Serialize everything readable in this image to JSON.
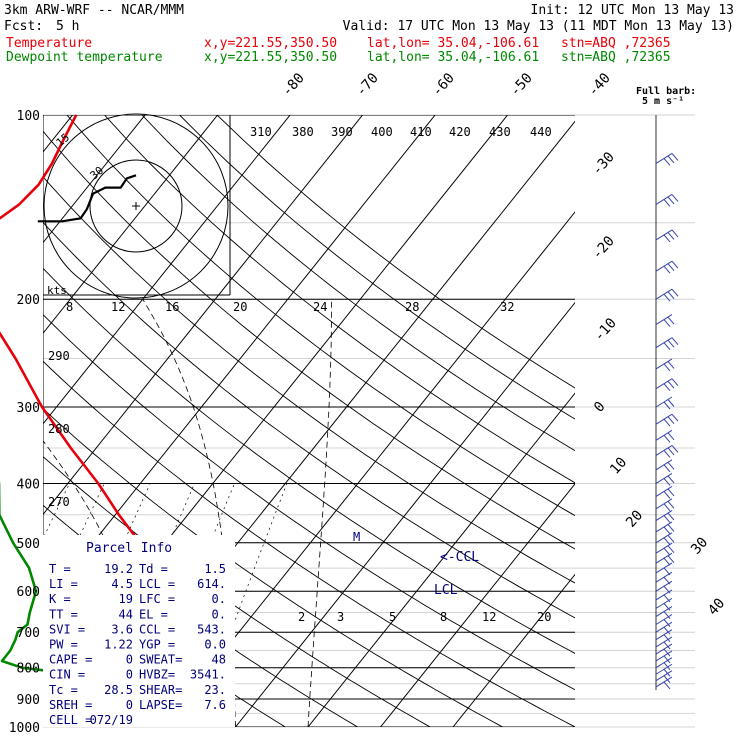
{
  "header": {
    "model": "3km ARW-WRF -- NCAR/MMM",
    "init": "Init: 12 UTC Mon 13 May 13",
    "fcst_label": "Fcst:",
    "fcst_value": "5 h",
    "valid": "Valid: 17 UTC Mon 13 May 13 (11 MDT Mon 13 May 13)",
    "temp_label": "Temperature",
    "dew_label": "Dewpoint temperature",
    "xy": "x,y=221.55,350.50",
    "latlon": "lat,lon= 35.04,-106.61",
    "stn": "stn=ABQ ,72365",
    "colors": {
      "temperature": "#e8000a",
      "dewpoint": "#008800",
      "parcel": "#00007a"
    }
  },
  "wind_legend": {
    "title": "Full barb:",
    "value": "5 m s⁻¹"
  },
  "hodograph": {
    "units": "kts",
    "ring_labels": [
      "15",
      "30"
    ]
  },
  "parcel_info": {
    "title": "Parcel Info",
    "rows": [
      [
        "T  =",
        "19.2",
        "Td =",
        "1.5"
      ],
      [
        "LI =",
        "4.5",
        "LCL =",
        "614."
      ],
      [
        "K  =",
        "19",
        "LFC =",
        "0."
      ],
      [
        "TT =",
        "44",
        "EL =",
        "0."
      ],
      [
        "SVI =",
        "3.6",
        "CCL =",
        "543."
      ],
      [
        "PW =",
        "1.22",
        "YGP =",
        "0.0"
      ],
      [
        "CAPE =",
        "0",
        "SWEAT=",
        "48"
      ],
      [
        "CIN =",
        "0",
        "HVBZ=",
        "3541."
      ],
      [
        "Tc =",
        "28.5",
        "SHEAR=",
        "23."
      ],
      [
        "SREH =",
        "0",
        "LAPSE=",
        "7.6"
      ],
      [
        "CELL =",
        "072/19",
        "",
        ""
      ]
    ]
  },
  "chart_data": {
    "type": "line",
    "chart_kind": "skew-T log-P diagram",
    "y_axis": {
      "quantity": "pressure (hPa)",
      "scale": "log",
      "range": [
        1000,
        100
      ],
      "ticks": [
        100,
        200,
        300,
        400,
        500,
        600,
        700,
        800,
        900,
        1000
      ]
    },
    "isotherm_labels_c": [
      -80,
      -70,
      -60,
      -50,
      -40,
      -30,
      -20,
      -10,
      0,
      10,
      20,
      30,
      40
    ],
    "theta_labels_k": [
      310,
      380,
      390,
      400,
      410,
      420,
      430,
      440
    ],
    "theta_side_labels_k": [
      290,
      280,
      270
    ],
    "mixing_ratio_labels_top": [
      8,
      12,
      16,
      20,
      24,
      28,
      32
    ],
    "mixing_ratio_labels_low": [
      2,
      3,
      5,
      8,
      12,
      20
    ],
    "annotations": [
      "M",
      "<-CCL",
      "LCL"
    ],
    "series": [
      {
        "name": "Temperature",
        "points": [
          [
            850,
            19.2
          ],
          [
            825,
            17.4
          ],
          [
            800,
            17.0
          ],
          [
            780,
            16.4
          ],
          [
            720,
            13.5
          ],
          [
            700,
            11.0
          ],
          [
            650,
            8.3
          ],
          [
            600,
            4.5
          ],
          [
            550,
            1.0
          ],
          [
            500,
            -3.5
          ],
          [
            450,
            -9.5
          ],
          [
            400,
            -15.8
          ],
          [
            350,
            -23.5
          ],
          [
            300,
            -32.0
          ],
          [
            250,
            -41.0
          ],
          [
            225,
            -46.5
          ],
          [
            200,
            -52.0
          ],
          [
            180,
            -58.0
          ],
          [
            170,
            -60.5
          ],
          [
            160,
            -60.5
          ],
          [
            150,
            -59.0
          ],
          [
            140,
            -57.5
          ],
          [
            130,
            -57.0
          ],
          [
            120,
            -57.5
          ],
          [
            110,
            -58.5
          ],
          [
            100,
            -59.5
          ]
        ]
      },
      {
        "name": "Dewpoint temperature",
        "points": [
          [
            850,
            1.5
          ],
          [
            830,
            1.0
          ],
          [
            815,
            0.0
          ],
          [
            800,
            -6.0
          ],
          [
            780,
            -9.5
          ],
          [
            750,
            -9.5
          ],
          [
            720,
            -10.0
          ],
          [
            700,
            -10.5
          ],
          [
            680,
            -10.0
          ],
          [
            650,
            -11.0
          ],
          [
            600,
            -12.5
          ],
          [
            550,
            -16.0
          ],
          [
            500,
            -21.0
          ],
          [
            450,
            -26.0
          ],
          [
            400,
            -29.5
          ],
          [
            350,
            -34.0
          ],
          [
            300,
            -44.5
          ],
          [
            280,
            -51.0
          ],
          [
            260,
            -57.5
          ],
          [
            250,
            -58.5
          ],
          [
            230,
            -61.0
          ],
          [
            200,
            -64.5
          ],
          [
            180,
            -68.0
          ],
          [
            160,
            -72.5
          ],
          [
            150,
            -75.5
          ],
          [
            140,
            -78.0
          ],
          [
            130,
            -80.5
          ],
          [
            120,
            -83.0
          ],
          [
            110,
            -86.0
          ],
          [
            100,
            -89.0
          ]
        ]
      }
    ],
    "hodograph_uv_kts": [
      [
        -32,
        -5
      ],
      [
        -24,
        -5
      ],
      [
        -18,
        -4
      ],
      [
        -16,
        -1
      ],
      [
        -14,
        4
      ],
      [
        -10,
        6
      ],
      [
        -5,
        6
      ],
      [
        -3,
        9
      ],
      [
        0,
        10
      ]
    ]
  }
}
